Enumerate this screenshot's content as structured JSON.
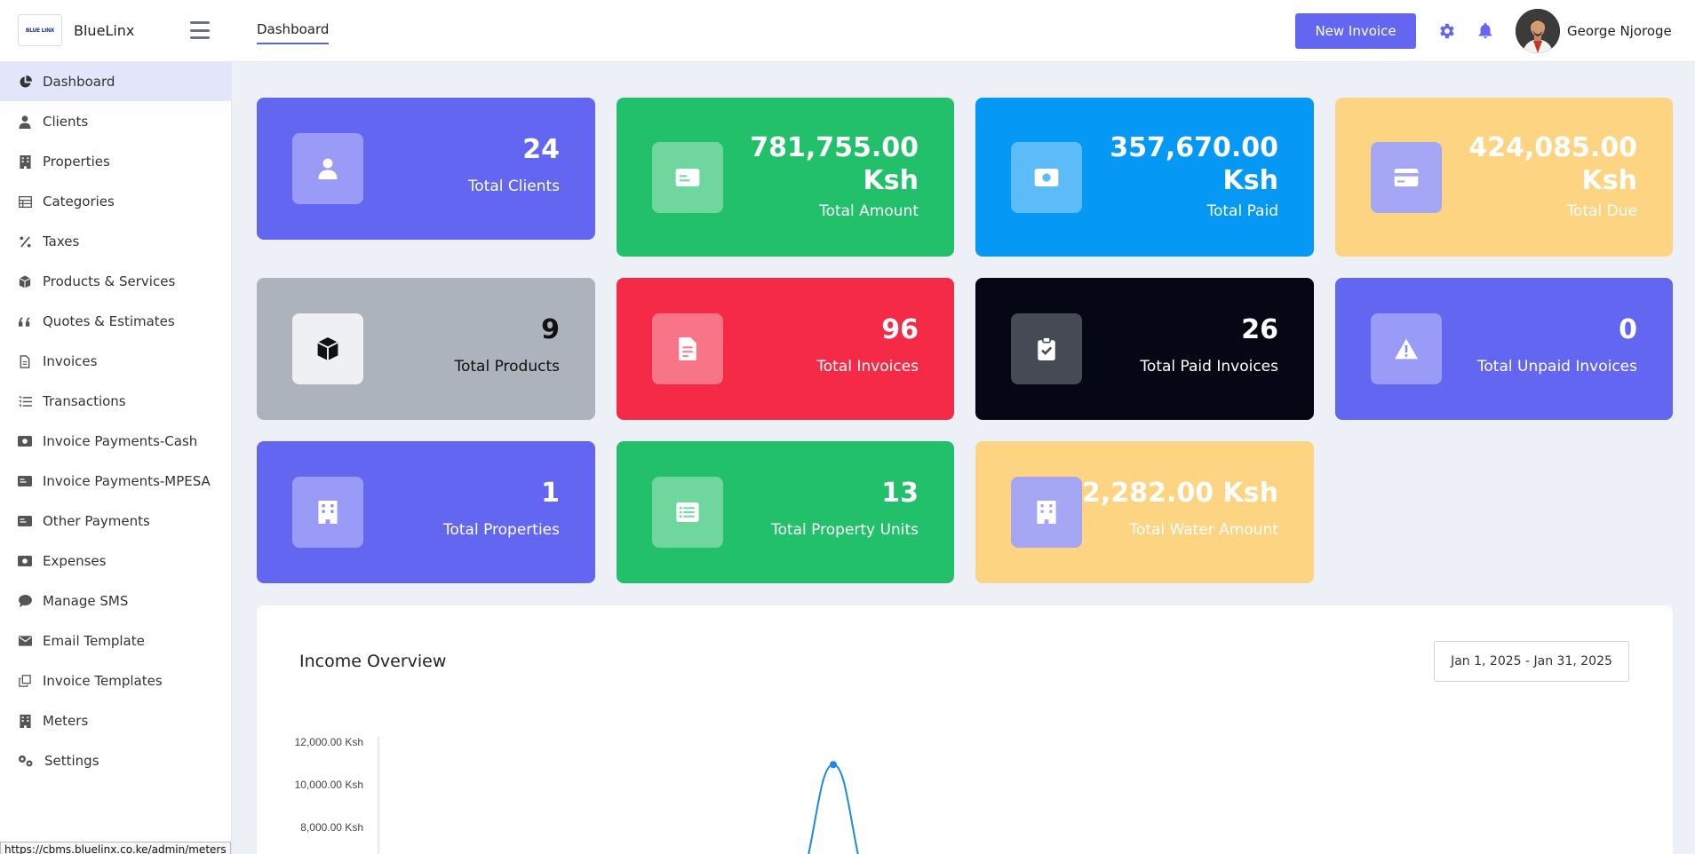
{
  "brand": {
    "name": "BlueLinx",
    "logo_text": "BLUE LINX"
  },
  "header": {
    "tab": "Dashboard",
    "new_invoice_label": "New Invoice",
    "user_name": "George Njoroge",
    "accent_color": "#6366f1"
  },
  "sidebar": {
    "items": [
      {
        "label": "Dashboard",
        "icon": "pie-chart-icon"
      },
      {
        "label": "Clients",
        "icon": "user-icon"
      },
      {
        "label": "Properties",
        "icon": "building-icon"
      },
      {
        "label": "Categories",
        "icon": "table-icon"
      },
      {
        "label": "Taxes",
        "icon": "percent-icon"
      },
      {
        "label": "Products & Services",
        "icon": "box-icon"
      },
      {
        "label": "Quotes & Estimates",
        "icon": "quote-icon"
      },
      {
        "label": "Invoices",
        "icon": "file-icon"
      },
      {
        "label": "Transactions",
        "icon": "list-icon"
      },
      {
        "label": "Invoice Payments-Cash",
        "icon": "money-icon"
      },
      {
        "label": "Invoice Payments-MPESA",
        "icon": "card-icon"
      },
      {
        "label": "Other Payments",
        "icon": "card-icon"
      },
      {
        "label": "Expenses",
        "icon": "money-icon"
      },
      {
        "label": "Manage SMS",
        "icon": "chat-icon"
      },
      {
        "label": "Email Template",
        "icon": "envelope-icon"
      },
      {
        "label": "Invoice Templates",
        "icon": "copy-icon"
      },
      {
        "label": "Meters",
        "icon": "building-icon"
      },
      {
        "label": "Settings",
        "icon": "gears-icon"
      }
    ]
  },
  "status_url": "https://cbms.bluelinx.co.ke/admin/meters",
  "cards": [
    {
      "value": "24",
      "label": "Total Clients",
      "icon": "user-icon",
      "color": "#6366f1"
    },
    {
      "value": "781,755.00 Ksh",
      "value_line1": "781,755.00",
      "value_line2": "Ksh",
      "label": "Total Amount",
      "icon": "id-card-icon",
      "color": "#22c06b"
    },
    {
      "value": "357,670.00 Ksh",
      "value_line1": "357,670.00",
      "value_line2": "Ksh",
      "label": "Total Paid",
      "icon": "money-icon",
      "color": "#0598f5"
    },
    {
      "value": "424,085.00 Ksh",
      "value_line1": "424,085.00",
      "value_line2": "Ksh",
      "label": "Total Due",
      "icon": "credit-card-icon",
      "color": "#fdd582"
    },
    {
      "value": "9",
      "label": "Total Products",
      "icon": "cube-icon",
      "color": "#adb3bd"
    },
    {
      "value": "96",
      "label": "Total Invoices",
      "icon": "invoice-icon",
      "color": "#f42a47"
    },
    {
      "value": "26",
      "label": "Total Paid Invoices",
      "icon": "clipboard-check-icon",
      "color": "#050814"
    },
    {
      "value": "0",
      "label": "Total Unpaid Invoices",
      "icon": "warning-icon",
      "color": "#6366f1"
    },
    {
      "value": "1",
      "label": "Total Properties",
      "icon": "building-icon",
      "color": "#6366f1"
    },
    {
      "value": "13",
      "label": "Total Property Units",
      "icon": "list-icon",
      "color": "#22c06b"
    },
    {
      "value": "2,282.00 Ksh",
      "label": "Total Water Amount",
      "icon": "building-icon",
      "color": "#fdd582"
    }
  ],
  "income": {
    "title": "Income Overview",
    "date_range": "Jan 1, 2025 - Jan 31, 2025"
  },
  "chart_data": {
    "type": "line",
    "y_tick_labels": [
      "12,000.00 Ksh",
      "10,000.00 Ksh",
      "8,000.00 Ksh"
    ],
    "y_ticks": [
      12000,
      10000,
      8000
    ],
    "peak_value": 11000,
    "series_color": "#1e88e5"
  }
}
